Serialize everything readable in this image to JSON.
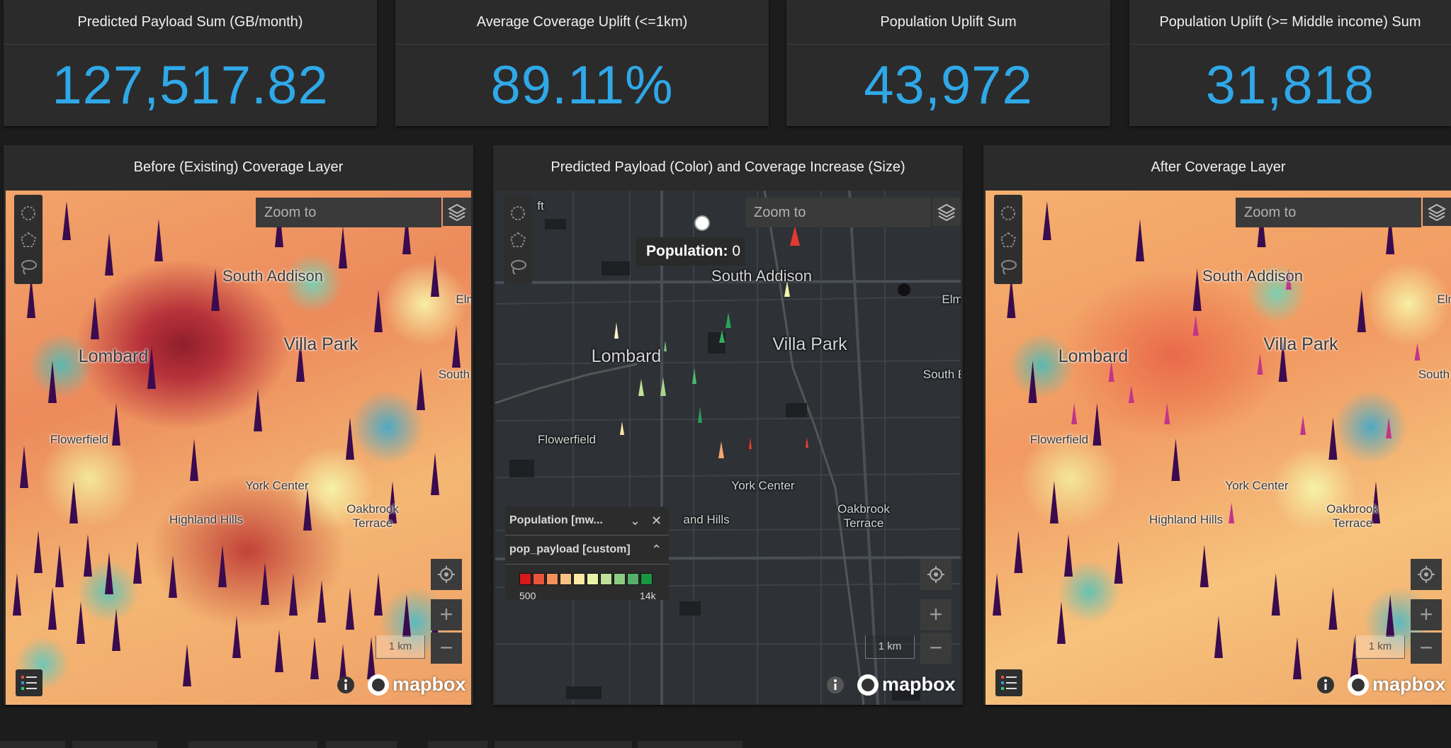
{
  "kpis": [
    {
      "title": "Predicted Payload Sum (GB/month)",
      "value": "127,517.82"
    },
    {
      "title": "Average Coverage Uplift (<=1km)",
      "value": "89.11%"
    },
    {
      "title": "Population Uplift Sum",
      "value": "43,972"
    },
    {
      "title": "Population Uplift (>= Middle income) Sum",
      "value": "31,818"
    }
  ],
  "panels": [
    {
      "title": "Before (Existing) Coverage Layer"
    },
    {
      "title": "Predicted Payload (Color) and Coverage Increase (Size)"
    },
    {
      "title": "After Coverage Layer"
    }
  ],
  "map": {
    "zoom_placeholder": "Zoom to",
    "scale_label": "1 km",
    "attribution": "mapbox",
    "zoom_in": "+",
    "zoom_out": "−",
    "places": {
      "lombard": "Lombard",
      "villa_park": "Villa Park",
      "south_addison": "South Addison",
      "flowerfield": "Flowerfield",
      "york_center": "York Center",
      "highland_hills": "Highland Hills",
      "oakbrook_terrace": "Oakbrook\nTerrace",
      "elm": "Elm",
      "south_e": "South E",
      "south_l": "South L",
      "ft": "ft",
      "and_hills": "and Hills"
    }
  },
  "popup": {
    "label": "Population:",
    "value": "0"
  },
  "legend": {
    "layer1": "Population [mw...",
    "layer2": "pop_payload [custom]",
    "min": "500",
    "max": "14k",
    "colors": [
      "#d7191c",
      "#e8553a",
      "#f4905a",
      "#f9c283",
      "#fde8a6",
      "#e8f3a8",
      "#bfe29a",
      "#8ccc82",
      "#55b06a",
      "#1a9641"
    ]
  },
  "icons": {
    "circle_select": "circle-select-icon",
    "polygon_select": "polygon-select-icon",
    "lasso_select": "lasso-select-icon",
    "layers": "layers-icon",
    "locate": "locate-icon",
    "legend": "legend-icon",
    "info": "info-icon"
  }
}
